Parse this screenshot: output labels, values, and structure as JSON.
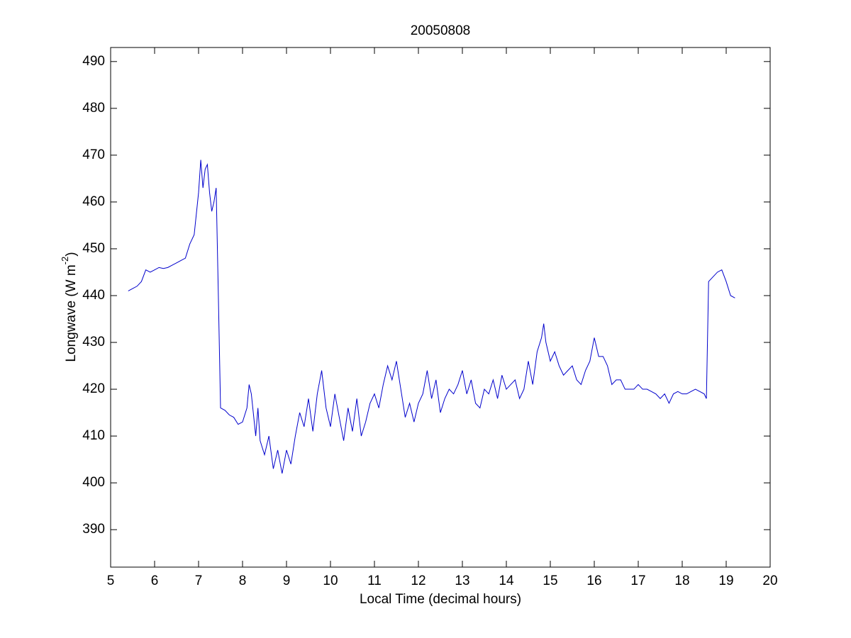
{
  "chart_data": {
    "type": "line",
    "title": "20050808",
    "xlabel": "Local Time (decimal hours)",
    "ylabel": {
      "text": "Longwave (W m",
      "superscript": "-2",
      "suffix": ")"
    },
    "xlim": [
      5,
      20
    ],
    "ylim": [
      382,
      493
    ],
    "xticks": [
      5,
      6,
      7,
      8,
      9,
      10,
      11,
      12,
      13,
      14,
      15,
      16,
      17,
      18,
      19,
      20
    ],
    "yticks": [
      390,
      400,
      410,
      420,
      430,
      440,
      450,
      460,
      470,
      480,
      490
    ],
    "grid": false,
    "x": [
      5.4,
      5.5,
      5.6,
      5.7,
      5.8,
      5.9,
      6.0,
      6.1,
      6.2,
      6.3,
      6.4,
      6.5,
      6.6,
      6.7,
      6.8,
      6.9,
      7.0,
      7.05,
      7.1,
      7.15,
      7.2,
      7.25,
      7.3,
      7.35,
      7.4,
      7.45,
      7.5,
      7.6,
      7.7,
      7.8,
      7.9,
      8.0,
      8.1,
      8.15,
      8.2,
      8.3,
      8.35,
      8.4,
      8.5,
      8.6,
      8.7,
      8.8,
      8.9,
      9.0,
      9.1,
      9.2,
      9.3,
      9.4,
      9.5,
      9.6,
      9.7,
      9.8,
      9.9,
      10.0,
      10.1,
      10.2,
      10.3,
      10.4,
      10.5,
      10.6,
      10.7,
      10.8,
      10.9,
      11.0,
      11.1,
      11.2,
      11.3,
      11.4,
      11.5,
      11.6,
      11.7,
      11.8,
      11.9,
      12.0,
      12.1,
      12.2,
      12.3,
      12.4,
      12.5,
      12.6,
      12.7,
      12.8,
      12.9,
      13.0,
      13.1,
      13.2,
      13.3,
      13.4,
      13.5,
      13.6,
      13.7,
      13.8,
      13.9,
      14.0,
      14.1,
      14.2,
      14.3,
      14.4,
      14.5,
      14.6,
      14.7,
      14.8,
      14.85,
      14.9,
      15.0,
      15.1,
      15.2,
      15.3,
      15.4,
      15.5,
      15.6,
      15.7,
      15.8,
      15.9,
      16.0,
      16.1,
      16.2,
      16.3,
      16.4,
      16.5,
      16.6,
      16.7,
      16.8,
      16.9,
      17.0,
      17.1,
      17.2,
      17.3,
      17.4,
      17.5,
      17.6,
      17.7,
      17.8,
      17.9,
      18.0,
      18.1,
      18.2,
      18.3,
      18.4,
      18.5,
      18.55,
      18.6,
      18.7,
      18.8,
      18.9,
      19.0,
      19.1,
      19.2
    ],
    "series": [
      {
        "color": "#0000cc",
        "values": [
          441,
          441.5,
          442,
          443,
          445.5,
          445,
          445.5,
          446,
          445.8,
          446,
          446.5,
          447,
          447.5,
          448,
          451,
          453,
          462,
          469,
          463,
          467,
          468,
          462,
          458,
          460,
          463,
          440,
          416,
          415.5,
          414.5,
          414,
          412.5,
          413,
          416,
          421,
          419,
          410,
          416,
          409,
          406,
          410,
          403,
          407,
          402,
          407,
          404,
          410,
          415,
          412,
          418,
          411,
          419,
          424,
          416,
          412,
          419,
          414,
          409,
          416,
          411,
          418,
          410,
          413,
          417,
          419,
          416,
          421,
          425,
          422,
          426,
          420,
          414,
          417,
          413,
          417,
          419,
          424,
          418,
          422,
          415,
          418,
          420,
          419,
          421,
          424,
          419,
          422,
          417,
          416,
          420,
          419,
          422,
          418,
          423,
          420,
          421,
          422,
          418,
          420,
          426,
          421,
          428,
          431,
          434,
          430,
          426,
          428,
          425,
          423,
          424,
          425,
          422,
          421,
          424,
          426,
          431,
          427,
          427,
          425,
          421,
          422,
          422,
          420,
          420,
          420,
          421,
          420,
          420,
          419.5,
          419,
          418,
          419,
          417,
          419,
          419.5,
          419,
          419,
          419.5,
          420,
          419.5,
          419,
          418,
          443,
          444,
          445,
          445.5,
          443,
          440,
          439.5
        ]
      }
    ]
  }
}
